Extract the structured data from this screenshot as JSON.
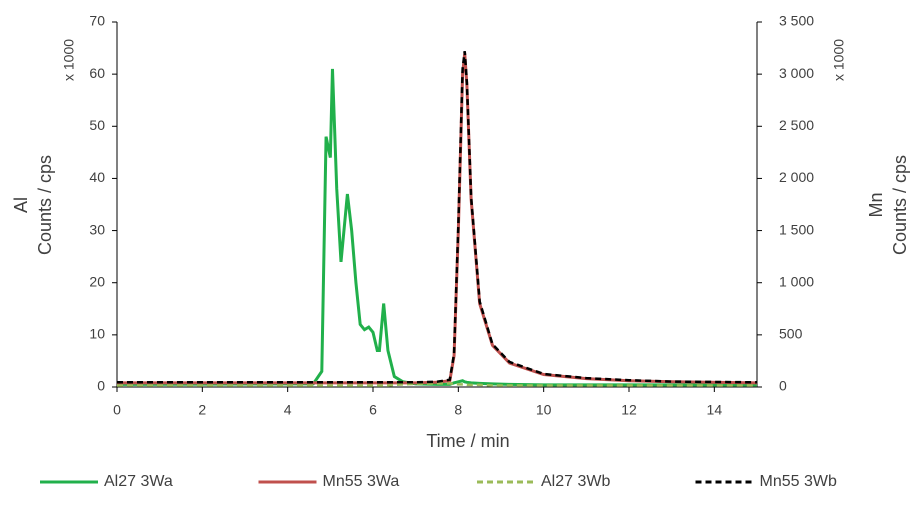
{
  "chart_data": {
    "type": "line",
    "x_label": "Time / min",
    "y_label_lines": [
      "Al",
      "Counts / cps"
    ],
    "y_unit": "x 1000",
    "y2_label_lines": [
      "Mn",
      "Counts / cps"
    ],
    "y2_unit": "x 1000",
    "x": [
      0,
      4.6,
      4.8,
      4.9,
      5.0,
      5.05,
      5.15,
      5.25,
      5.4,
      5.5,
      5.6,
      5.7,
      5.8,
      5.9,
      6.0,
      6.1,
      6.15,
      6.25,
      6.35,
      6.5,
      6.7,
      7.0,
      7.5,
      7.8,
      7.9,
      8.0,
      8.1,
      8.15,
      8.2,
      8.3,
      8.5,
      8.8,
      9.2,
      10,
      11,
      12,
      13,
      15
    ],
    "xlim": [
      0,
      15
    ],
    "xticks": [
      0,
      2,
      4,
      6,
      8,
      10,
      12,
      14
    ],
    "ylim": [
      0,
      70
    ],
    "yticks": [
      0,
      10,
      20,
      30,
      40,
      50,
      60,
      70
    ],
    "y2lim": [
      0,
      3500
    ],
    "y2ticks": [
      0,
      500,
      {
        "value": 1000,
        "label": "1 000"
      },
      {
        "value": 1500,
        "label": "1 500"
      },
      {
        "value": 2000,
        "label": "2 000"
      },
      {
        "value": 2500,
        "label": "2 500"
      },
      {
        "value": 3000,
        "label": "3 000"
      },
      {
        "value": 3500,
        "label": "3 500"
      }
    ],
    "series": [
      {
        "name": "Al27 3Wa",
        "color": "#21b04b",
        "dash": false,
        "values": [
          0.5,
          0.6,
          3,
          48,
          44,
          61,
          38,
          24,
          37,
          30,
          20,
          12,
          11,
          11.5,
          10.5,
          7,
          7,
          16,
          7,
          2,
          1,
          0.6,
          0.5,
          0.5,
          0.8,
          1,
          1.2,
          1,
          0.9,
          0.8,
          0.7,
          0.6,
          0.5,
          0.4,
          0.4,
          0.4,
          0.4,
          0.4
        ]
      },
      {
        "name": "Mn55 3Wa",
        "color": "#c0504d",
        "dash": false,
        "axis": "y2",
        "values": [
          40,
          40,
          40,
          40,
          40,
          40,
          40,
          40,
          40,
          40,
          40,
          40,
          40,
          40,
          40,
          40,
          40,
          40,
          40,
          40,
          40,
          40,
          45,
          60,
          300,
          1500,
          3000,
          3200,
          2900,
          1800,
          800,
          400,
          230,
          120,
          80,
          60,
          50,
          40
        ]
      },
      {
        "name": "Al27 3Wb",
        "color": "#9bbb59",
        "dash": true,
        "values": [
          0.3,
          0.3,
          0.3,
          0.3,
          0.3,
          0.3,
          0.3,
          0.3,
          0.3,
          0.3,
          0.3,
          0.3,
          0.3,
          0.3,
          0.3,
          0.3,
          0.3,
          0.3,
          0.3,
          0.4,
          0.5,
          0.6,
          0.7,
          0.7,
          0.6,
          0.5,
          0.5,
          0.5,
          0.4,
          0.4,
          0.4,
          0.3,
          0.3,
          0.3,
          0.3,
          0.3,
          0.3,
          0.3
        ]
      },
      {
        "name": "Mn55 3Wb",
        "color": "#000000",
        "dash": true,
        "axis": "y2",
        "values": [
          45,
          45,
          45,
          45,
          45,
          45,
          45,
          45,
          45,
          45,
          45,
          45,
          45,
          45,
          45,
          45,
          45,
          45,
          45,
          45,
          45,
          45,
          50,
          70,
          320,
          1550,
          3050,
          3220,
          2920,
          1820,
          820,
          410,
          240,
          125,
          85,
          65,
          52,
          45
        ]
      }
    ]
  }
}
